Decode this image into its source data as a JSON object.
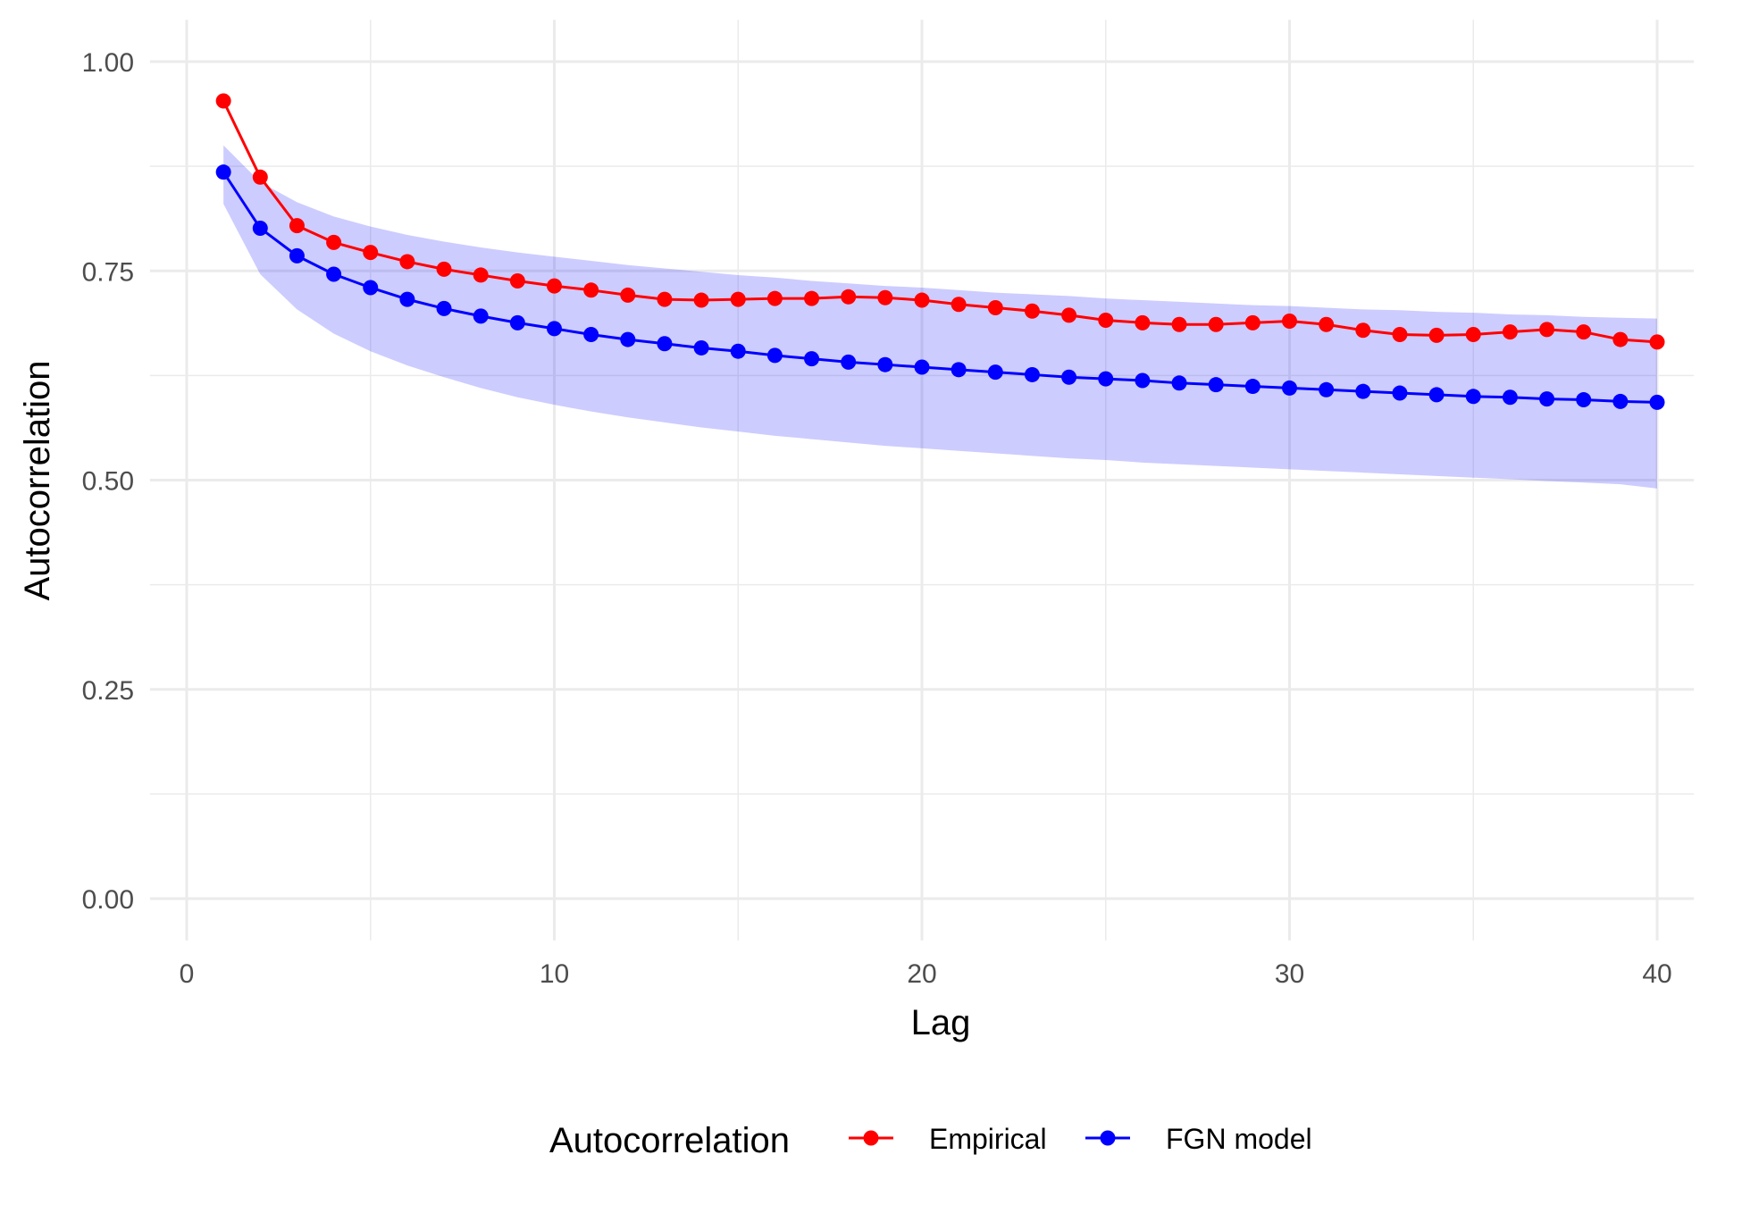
{
  "chart_data": {
    "type": "line",
    "xlabel": "Lag",
    "ylabel": "Autocorrelation",
    "xlim": [
      -1,
      41
    ],
    "ylim": [
      -0.05,
      1.05
    ],
    "x_ticks": [
      0,
      10,
      20,
      30,
      40
    ],
    "x_tick_labels": [
      "0",
      "10",
      "20",
      "30",
      "40"
    ],
    "x_minor_ticks": [
      5,
      15,
      25,
      35
    ],
    "y_ticks": [
      0,
      0.25,
      0.5,
      0.75,
      1.0
    ],
    "y_tick_labels": [
      "0.00",
      "0.25",
      "0.50",
      "0.75",
      "1.00"
    ],
    "y_minor_ticks": [
      0.125,
      0.375,
      0.625,
      0.875
    ],
    "grid": true,
    "legend": {
      "title": "Autocorrelation",
      "placement": "bottom"
    },
    "x": [
      1,
      2,
      3,
      4,
      5,
      6,
      7,
      8,
      9,
      10,
      11,
      12,
      13,
      14,
      15,
      16,
      17,
      18,
      19,
      20,
      21,
      22,
      23,
      24,
      25,
      26,
      27,
      28,
      29,
      30,
      31,
      32,
      33,
      34,
      35,
      36,
      37,
      38,
      39,
      40
    ],
    "series": [
      {
        "name": "Empirical",
        "color": "#ff0000",
        "values": [
          0.953,
          0.862,
          0.804,
          0.784,
          0.772,
          0.761,
          0.752,
          0.745,
          0.738,
          0.732,
          0.727,
          0.721,
          0.716,
          0.715,
          0.716,
          0.717,
          0.717,
          0.719,
          0.718,
          0.715,
          0.71,
          0.706,
          0.702,
          0.697,
          0.691,
          0.688,
          0.686,
          0.686,
          0.688,
          0.69,
          0.686,
          0.679,
          0.674,
          0.673,
          0.674,
          0.677,
          0.68,
          0.677,
          0.668,
          0.665
        ]
      },
      {
        "name": "FGN model",
        "color": "#0000ff",
        "values": [
          0.868,
          0.801,
          0.768,
          0.746,
          0.73,
          0.716,
          0.705,
          0.696,
          0.688,
          0.681,
          0.674,
          0.668,
          0.663,
          0.658,
          0.654,
          0.649,
          0.645,
          0.641,
          0.638,
          0.635,
          0.632,
          0.629,
          0.626,
          0.623,
          0.621,
          0.619,
          0.616,
          0.614,
          0.612,
          0.61,
          0.608,
          0.606,
          0.604,
          0.602,
          0.6,
          0.599,
          0.597,
          0.596,
          0.594,
          0.593
        ]
      }
    ],
    "band": {
      "color": "#0000ff",
      "opacity": 0.2,
      "upper": [
        0.9,
        0.856,
        0.832,
        0.815,
        0.803,
        0.793,
        0.785,
        0.778,
        0.772,
        0.767,
        0.762,
        0.757,
        0.753,
        0.749,
        0.745,
        0.742,
        0.738,
        0.735,
        0.732,
        0.73,
        0.727,
        0.724,
        0.722,
        0.72,
        0.717,
        0.715,
        0.713,
        0.711,
        0.709,
        0.708,
        0.706,
        0.704,
        0.703,
        0.701,
        0.7,
        0.698,
        0.697,
        0.695,
        0.694,
        0.693
      ],
      "lower": [
        0.83,
        0.746,
        0.704,
        0.675,
        0.654,
        0.637,
        0.623,
        0.61,
        0.599,
        0.59,
        0.582,
        0.575,
        0.569,
        0.563,
        0.558,
        0.553,
        0.549,
        0.545,
        0.541,
        0.538,
        0.535,
        0.532,
        0.529,
        0.526,
        0.524,
        0.521,
        0.519,
        0.517,
        0.515,
        0.513,
        0.511,
        0.509,
        0.507,
        0.505,
        0.503,
        0.501,
        0.499,
        0.497,
        0.495,
        0.49
      ]
    }
  }
}
